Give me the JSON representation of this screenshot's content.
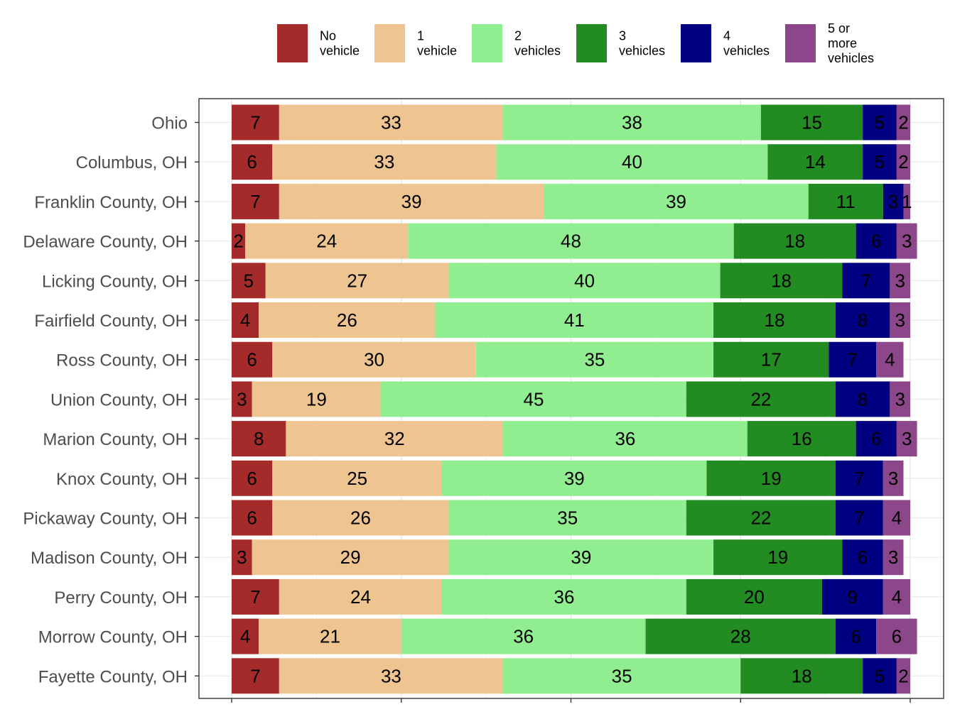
{
  "chart_data": {
    "type": "bar",
    "orientation": "horizontal",
    "stacked": true,
    "title": "",
    "xlabel": "",
    "ylabel": "",
    "xlim": [
      0,
      100
    ],
    "grid": true,
    "legend_position": "top",
    "categories": [
      "Ohio",
      "Columbus, OH",
      "Franklin County, OH",
      "Delaware County, OH",
      "Licking County, OH",
      "Fairfield County, OH",
      "Ross County, OH",
      "Union County, OH",
      "Marion County, OH",
      "Knox County, OH",
      "Pickaway County, OH",
      "Madison County, OH",
      "Perry County, OH",
      "Morrow County, OH",
      "Fayette County, OH"
    ],
    "series": [
      {
        "name": "No vehicle",
        "legend_lines": [
          "No",
          "vehicle"
        ],
        "color": "#a52a2a",
        "values": [
          7,
          6,
          7,
          2,
          5,
          4,
          6,
          3,
          8,
          6,
          6,
          3,
          7,
          4,
          7
        ]
      },
      {
        "name": "1 vehicle",
        "legend_lines": [
          "1",
          "vehicle"
        ],
        "color": "#eec591",
        "values": [
          33,
          33,
          39,
          24,
          27,
          26,
          30,
          19,
          32,
          25,
          26,
          29,
          24,
          21,
          33
        ]
      },
      {
        "name": "2 vehicles",
        "legend_lines": [
          "2",
          "vehicles"
        ],
        "color": "#90ee90",
        "values": [
          38,
          40,
          39,
          48,
          40,
          41,
          35,
          45,
          36,
          39,
          35,
          39,
          36,
          36,
          35
        ]
      },
      {
        "name": "3 vehicles",
        "legend_lines": [
          "3",
          "vehicles"
        ],
        "color": "#228b22",
        "values": [
          15,
          14,
          11,
          18,
          18,
          18,
          17,
          22,
          16,
          19,
          22,
          19,
          20,
          28,
          18
        ]
      },
      {
        "name": "4 vehicles",
        "legend_lines": [
          "4",
          "vehicles"
        ],
        "color": "#000080",
        "values": [
          5,
          5,
          3,
          6,
          7,
          8,
          7,
          8,
          6,
          7,
          7,
          6,
          9,
          6,
          5
        ]
      },
      {
        "name": "5 or more vehicles",
        "legend_lines": [
          "5 or",
          "more",
          "vehicles"
        ],
        "color": "#8b4789",
        "values": [
          2,
          2,
          1,
          3,
          3,
          3,
          4,
          3,
          3,
          3,
          4,
          3,
          4,
          6,
          2
        ]
      }
    ]
  }
}
